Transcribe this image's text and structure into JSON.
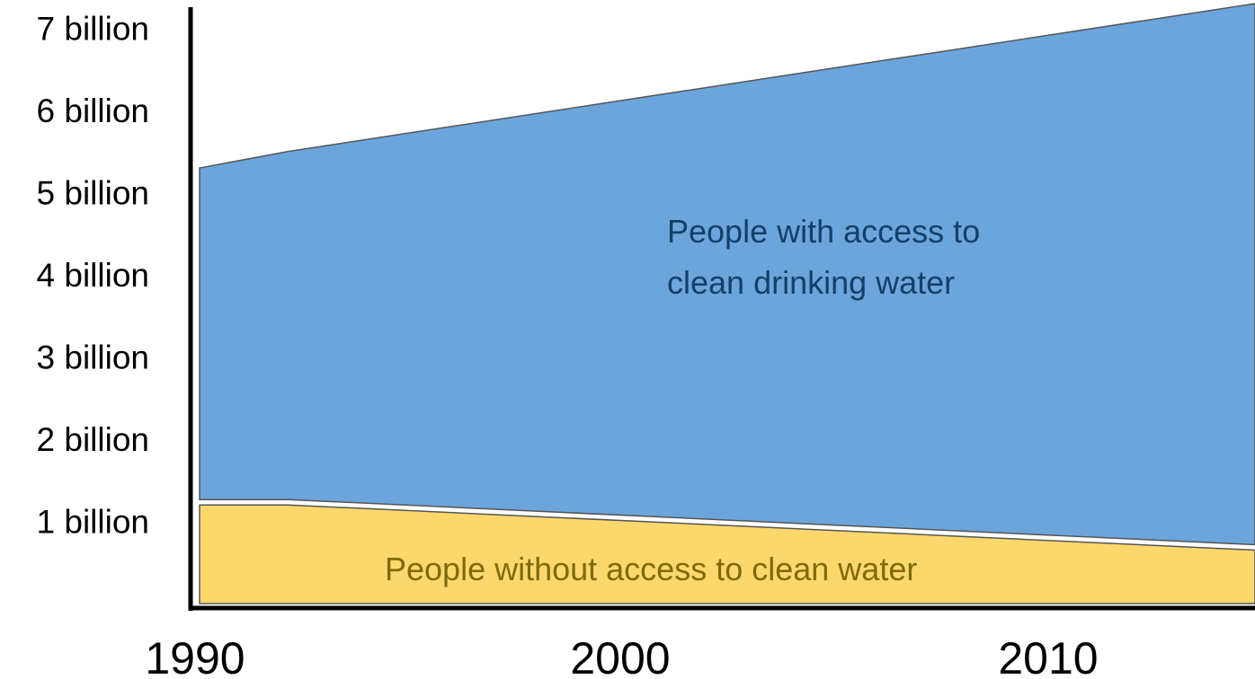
{
  "chart_data": {
    "type": "area",
    "stacked": true,
    "x": [
      1990,
      1992,
      2014
    ],
    "series": [
      {
        "name": "People without access to clean water",
        "values": [
          1.2,
          1.2,
          0.65
        ],
        "color": "#fcd86c",
        "label_color": "#7e6a0a"
      },
      {
        "name": "People with access to clean drinking water",
        "values": [
          4.1,
          4.3,
          6.65
        ],
        "color": "#6ca5db",
        "label_color": "#13406a"
      }
    ],
    "labels": {
      "with_access": [
        "People with access to",
        "clean drinking water"
      ],
      "without_access": "People without access to clean water"
    },
    "y_ticks": [
      {
        "value": 1,
        "label": "1 billion"
      },
      {
        "value": 2,
        "label": "2 billion"
      },
      {
        "value": 3,
        "label": "3 billion"
      },
      {
        "value": 4,
        "label": "4 billion"
      },
      {
        "value": 5,
        "label": "5 billion"
      },
      {
        "value": 6,
        "label": "6 billion"
      },
      {
        "value": 7,
        "label": "7 billion"
      }
    ],
    "x_ticks": [
      {
        "value": 1990,
        "label": "1990"
      },
      {
        "value": 2000,
        "label": "2000"
      },
      {
        "value": 2010,
        "label": "2010"
      }
    ],
    "xlim": [
      1990,
      2014
    ],
    "ylim": [
      0,
      7.3
    ],
    "title": "",
    "xlabel": "",
    "ylabel": "",
    "grid": false,
    "legend": "none"
  }
}
